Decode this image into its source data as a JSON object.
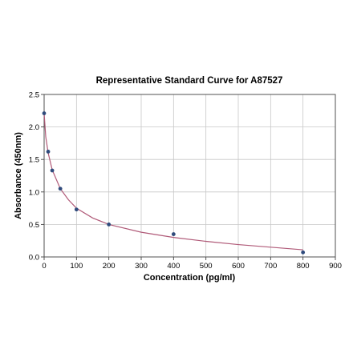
{
  "chart_data": {
    "type": "scatter",
    "title": "Representative Standard Curve for A87527",
    "xlabel": "Concentration (pg/ml)",
    "ylabel": "Absorbance (450nm)",
    "xlim": [
      0,
      900
    ],
    "ylim": [
      0,
      2.5
    ],
    "xticks": [
      0,
      100,
      200,
      300,
      400,
      500,
      600,
      700,
      800,
      900
    ],
    "yticks": [
      0.0,
      0.5,
      1.0,
      1.5,
      2.0,
      2.5
    ],
    "grid": true,
    "points": [
      {
        "x": 0,
        "y": 2.21
      },
      {
        "x": 12.5,
        "y": 1.62
      },
      {
        "x": 25,
        "y": 1.33
      },
      {
        "x": 50,
        "y": 1.05
      },
      {
        "x": 100,
        "y": 0.73
      },
      {
        "x": 200,
        "y": 0.5
      },
      {
        "x": 400,
        "y": 0.35
      },
      {
        "x": 800,
        "y": 0.07
      }
    ],
    "fit_curve": [
      {
        "x": 0,
        "y": 2.21
      },
      {
        "x": 5,
        "y": 1.85
      },
      {
        "x": 12.5,
        "y": 1.6
      },
      {
        "x": 25,
        "y": 1.34
      },
      {
        "x": 50,
        "y": 1.05
      },
      {
        "x": 75,
        "y": 0.88
      },
      {
        "x": 100,
        "y": 0.75
      },
      {
        "x": 150,
        "y": 0.6
      },
      {
        "x": 200,
        "y": 0.5
      },
      {
        "x": 300,
        "y": 0.38
      },
      {
        "x": 400,
        "y": 0.3
      },
      {
        "x": 500,
        "y": 0.24
      },
      {
        "x": 600,
        "y": 0.19
      },
      {
        "x": 700,
        "y": 0.15
      },
      {
        "x": 800,
        "y": 0.11
      }
    ],
    "colors": {
      "points": "#2f4b7c",
      "curve": "#b05a78",
      "grid": "#c8c8c8"
    }
  }
}
